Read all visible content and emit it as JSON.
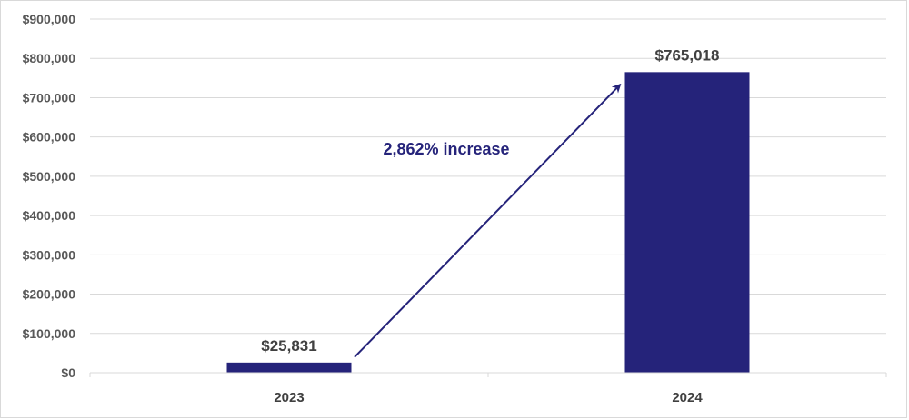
{
  "chart_data": {
    "type": "bar",
    "categories": [
      "2023",
      "2024"
    ],
    "values": [
      25831,
      765018
    ],
    "data_labels": [
      "$25,831",
      "$765,018"
    ],
    "ylim": [
      0,
      900000
    ],
    "yticks": [
      0,
      100000,
      200000,
      300000,
      400000,
      500000,
      600000,
      700000,
      800000,
      900000
    ],
    "ytick_labels": [
      "$0",
      "$100,000",
      "$200,000",
      "$300,000",
      "$400,000",
      "$500,000",
      "$600,000",
      "$700,000",
      "$800,000",
      "$900,000"
    ],
    "grid": true,
    "legend": "none",
    "annotation": {
      "text": "2,862% increase",
      "from_category": "2023",
      "to_category": "2024"
    },
    "colors": {
      "bar": "#25237a",
      "grid": "#d9d9d9",
      "annotation": "#25237a"
    }
  }
}
